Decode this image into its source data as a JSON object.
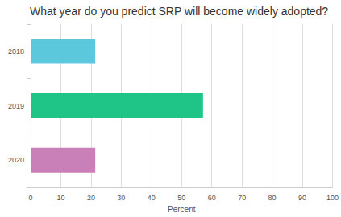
{
  "chart_data": {
    "type": "bar",
    "title": "What year do you predict SRP will become widely adopted?",
    "orientation": "horizontal",
    "categories": [
      "2018",
      "2019",
      "2020"
    ],
    "values": [
      21.4,
      57.1,
      21.4
    ],
    "colors": [
      "#5bc8dc",
      "#1fc487",
      "#c97fb8"
    ],
    "xlabel": "Percent",
    "xlim": [
      0,
      100
    ],
    "xticks": [
      0,
      10,
      20,
      30,
      40,
      50,
      60,
      70,
      80,
      90,
      100
    ],
    "grid": true
  }
}
